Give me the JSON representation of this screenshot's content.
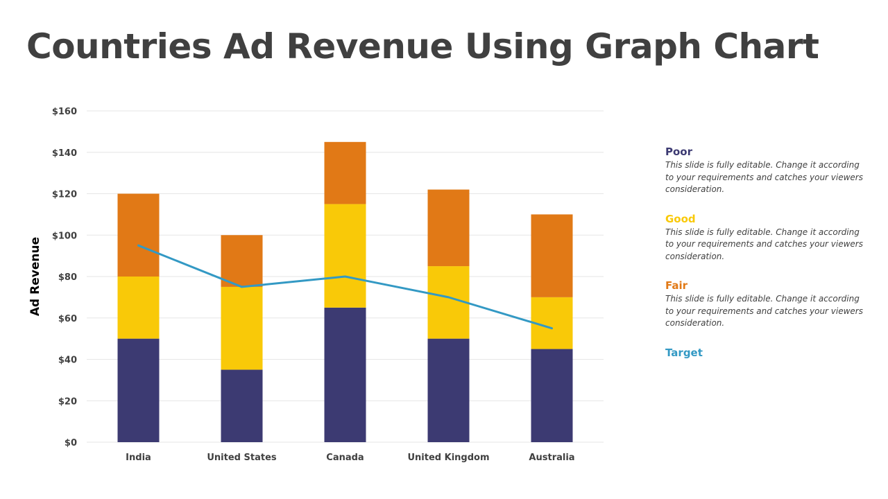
{
  "title": "Countries Ad Revenue Using Graph Chart",
  "colors": {
    "poor": "#3c3a72",
    "good": "#f9c908",
    "fair": "#e17916",
    "target": "#3399c4",
    "grid": "#e6e6e6",
    "text": "#404040"
  },
  "chart_data": {
    "type": "bar",
    "stacked": true,
    "categories": [
      "India",
      "United States",
      "Canada",
      "United Kingdom",
      "Australia"
    ],
    "series": [
      {
        "name": "Poor",
        "type": "bar",
        "values": [
          50,
          35,
          65,
          50,
          45
        ]
      },
      {
        "name": "Good",
        "type": "bar",
        "values": [
          30,
          40,
          50,
          35,
          25
        ]
      },
      {
        "name": "Fair",
        "type": "bar",
        "values": [
          40,
          25,
          30,
          37,
          40
        ]
      },
      {
        "name": "Target",
        "type": "line",
        "values": [
          95,
          75,
          80,
          70,
          55
        ]
      }
    ],
    "title": "",
    "xlabel": "",
    "ylabel": "Ad Revenue",
    "ylim": [
      0,
      160
    ],
    "yticks": [
      "$0",
      "$20",
      "$40",
      "$60",
      "$80",
      "$100",
      "$120",
      "$140",
      "$160"
    ],
    "grid": true,
    "legend_position": "right"
  },
  "legend": [
    {
      "name": "Poor",
      "description": "This slide is fully editable. Change it according to your requirements and catches your viewers consideration."
    },
    {
      "name": "Good",
      "description": "This slide is fully editable. Change it according to your requirements and catches your viewers consideration."
    },
    {
      "name": "Fair",
      "description": "This slide is fully editable. Change it according to your requirements and catches your viewers consideration."
    },
    {
      "name": "Target",
      "description": ""
    }
  ]
}
